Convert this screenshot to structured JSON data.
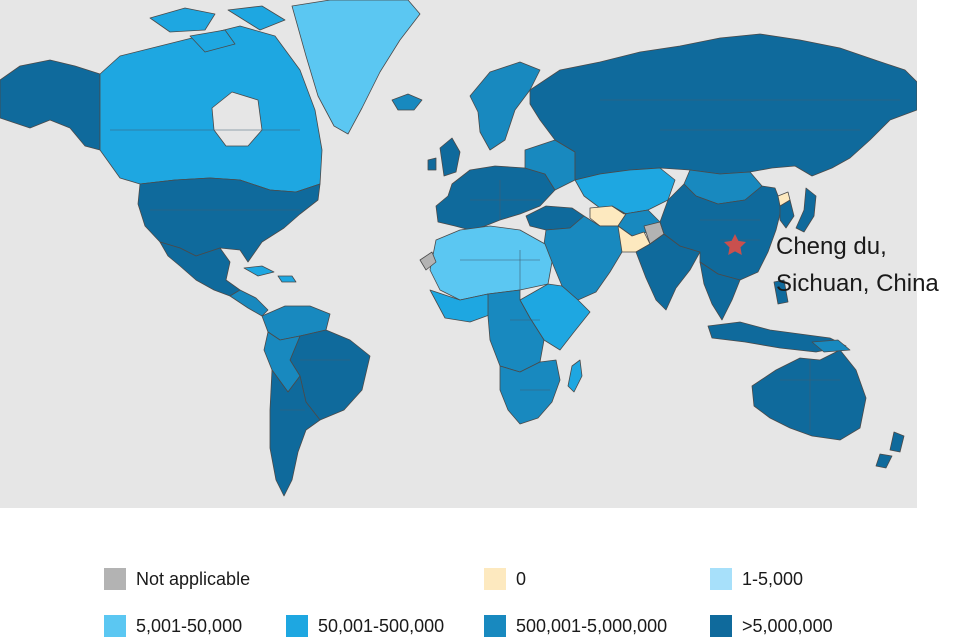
{
  "map": {
    "category_colors": {
      "not_applicable": "#b3b3b3",
      "zero": "#fde9bf",
      "1_5000": "#a7e0fa",
      "5001_50000": "#5bc7f2",
      "50001_500000": "#1ea7e1",
      "500001_5000000": "#1889bf",
      "over_5000000": "#0f6a9c"
    },
    "background_color": "#e6e6e6",
    "marker": {
      "icon": "star-icon",
      "color": "#c9504e",
      "label_line1": "Cheng du,",
      "label_line2": "Sichuan, China"
    }
  },
  "legend": {
    "items": [
      {
        "label": "Not applicable",
        "color": "#b3b3b3"
      },
      {
        "label": "0",
        "color": "#fde9bf"
      },
      {
        "label": "1-5,000",
        "color": "#a7e0fa"
      },
      {
        "label": "5,001-50,000",
        "color": "#5bc7f2"
      },
      {
        "label": "50,001-500,000",
        "color": "#1ea7e1"
      },
      {
        "label": "500,001-5,000,000",
        "color": "#1889bf"
      },
      {
        "label": ">5,000,000",
        "color": "#0f6a9c"
      }
    ]
  }
}
